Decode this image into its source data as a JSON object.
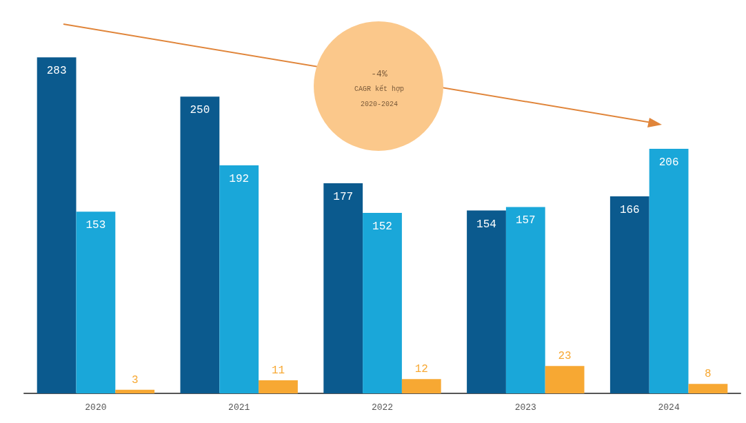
{
  "chart_data": {
    "type": "bar",
    "categories": [
      "2020",
      "2021",
      "2022",
      "2023",
      "2024"
    ],
    "series": [
      {
        "color": "#0b5a8e",
        "values": [
          283,
          250,
          177,
          154,
          166
        ]
      },
      {
        "color": "#1aa7d9",
        "values": [
          153,
          192,
          152,
          157,
          206
        ]
      },
      {
        "color": "#f7a833",
        "values": [
          3,
          11,
          12,
          23,
          8
        ]
      }
    ],
    "data_labels": true,
    "annotations": [
      "-4%",
      "CAGR kết hợp",
      "2020-2024"
    ]
  }
}
